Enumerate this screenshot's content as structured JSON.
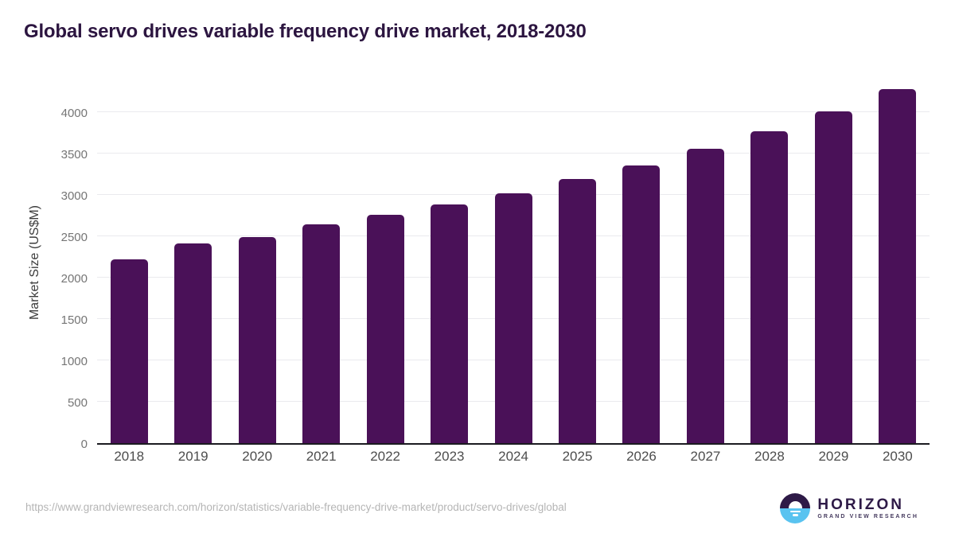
{
  "title": "Global servo drives variable frequency drive market, 2018-2030",
  "source_url": "https://www.grandviewresearch.com/horizon/statistics/variable-frequency-drive-market/product/servo-drives/global",
  "logo": {
    "name": "HORIZON",
    "subtitle": "GRAND VIEW RESEARCH"
  },
  "colors": {
    "bar": "#4a1158",
    "title_text": "#2c1540",
    "axis_line": "#1b1b20",
    "gridline": "#eaeaee",
    "y_tick_label": "#757575",
    "x_tick_label": "#4d4d4d",
    "url_text": "#b5b5b5",
    "logo_dark": "#2e1a47",
    "logo_blue": "#59c3f0"
  },
  "chart_data": {
    "type": "bar",
    "title": "Global servo drives variable frequency drive market, 2018-2030",
    "categories": [
      "2018",
      "2019",
      "2020",
      "2021",
      "2022",
      "2023",
      "2024",
      "2025",
      "2026",
      "2027",
      "2028",
      "2029",
      "2030"
    ],
    "values": [
      2220,
      2410,
      2485,
      2645,
      2760,
      2880,
      3020,
      3190,
      3355,
      3550,
      3770,
      4010,
      4275
    ],
    "xlabel": "",
    "ylabel": "Market Size (US$M)",
    "ylim": [
      0,
      4390
    ],
    "yticks": [
      0,
      500,
      1000,
      1500,
      2000,
      2500,
      3000,
      3500,
      4000
    ],
    "grid": true,
    "legend": false,
    "bar_color": "#4a1158"
  }
}
